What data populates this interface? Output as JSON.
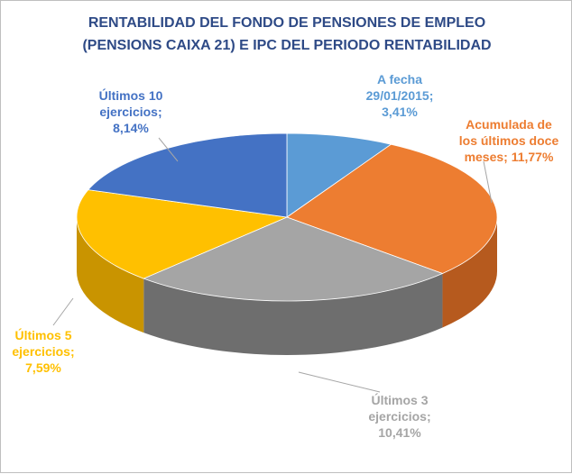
{
  "chart_data": {
    "type": "pie",
    "title_lines": [
      "RENTABILIDAD DEL FONDO DE PENSIONES DE EMPLEO",
      "(PENSIONS CAIXA 21) E IPC DEL PERIODO RENTABILIDAD"
    ],
    "slices": [
      {
        "name": "A fecha 29/01/2015",
        "value": 3.41,
        "label_lines": [
          "A fecha",
          "29/01/2015;",
          "3,41%"
        ],
        "color": "#5b9bd5",
        "side_color": "#3f73a3"
      },
      {
        "name": "Acumulada de los últimos doce meses",
        "value": 11.77,
        "label_lines": [
          "Acumulada de",
          "los últimos doce",
          "meses; 11,77%"
        ],
        "color": "#ed7d31",
        "side_color": "#b65a1e"
      },
      {
        "name": "Últimos 3 ejercicios",
        "value": 10.41,
        "label_lines": [
          "Últimos 3",
          "ejercicios;",
          "10,41%"
        ],
        "color": "#a5a5a5",
        "side_color": "#6e6e6e"
      },
      {
        "name": "Últimos 5 ejercicios",
        "value": 7.59,
        "label_lines": [
          "Últimos 5",
          "ejercicios;",
          "7,59%"
        ],
        "color": "#ffc000",
        "side_color": "#c99400"
      },
      {
        "name": "Últimos 10 ejercicios",
        "value": 8.14,
        "label_lines": [
          "Últimos 10",
          "ejercicios;",
          "8,14%"
        ],
        "color": "#4472c4",
        "side_color": "#2f5597"
      }
    ],
    "label_colors": [
      "#5b9bd5",
      "#ed7d31",
      "#a5a5a5",
      "#ffc000",
      "#4472c4"
    ],
    "legend": "none"
  }
}
